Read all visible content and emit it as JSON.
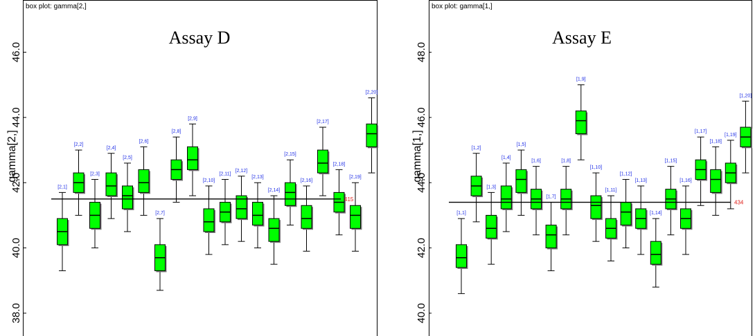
{
  "chart_data": [
    {
      "type": "box",
      "tag": "box plot: gamma[2,]",
      "title": "Assay D",
      "ylabel": "gamma[2,]",
      "ylim": [
        37.3,
        47.6
      ],
      "yticks": [
        "38.0",
        "40.0",
        "42.0",
        "44.0",
        "46.0"
      ],
      "ytick_values": [
        38,
        40,
        42,
        44,
        46
      ],
      "reference_line": {
        "value": 41.5,
        "label": "415"
      },
      "box_color": "#00ff00",
      "boxes": [
        {
          "label": "[2,1]",
          "whisker_low": 39.3,
          "q1": 40.1,
          "median": 40.5,
          "q3": 40.9,
          "whisker_high": 41.7
        },
        {
          "label": "[2,2]",
          "whisker_low": 41.0,
          "q1": 41.7,
          "median": 42.0,
          "q3": 42.3,
          "whisker_high": 43.0
        },
        {
          "label": "[2,3]",
          "whisker_low": 40.0,
          "q1": 40.6,
          "median": 41.0,
          "q3": 41.4,
          "whisker_high": 42.1
        },
        {
          "label": "[2,4]",
          "whisker_low": 40.9,
          "q1": 41.6,
          "median": 41.9,
          "q3": 42.3,
          "whisker_high": 42.9
        },
        {
          "label": "[2,5]",
          "whisker_low": 40.5,
          "q1": 41.2,
          "median": 41.6,
          "q3": 41.9,
          "whisker_high": 42.6
        },
        {
          "label": "[2,6]",
          "whisker_low": 41.0,
          "q1": 41.7,
          "median": 42.0,
          "q3": 42.4,
          "whisker_high": 43.1
        },
        {
          "label": "[2,7]",
          "whisker_low": 38.7,
          "q1": 39.3,
          "median": 39.7,
          "q3": 40.1,
          "whisker_high": 40.9
        },
        {
          "label": "[2,8]",
          "whisker_low": 41.4,
          "q1": 42.1,
          "median": 42.4,
          "q3": 42.7,
          "whisker_high": 43.4
        },
        {
          "label": "[2,9]",
          "whisker_low": 41.6,
          "q1": 42.4,
          "median": 42.7,
          "q3": 43.1,
          "whisker_high": 43.8
        },
        {
          "label": "[2,10]",
          "whisker_low": 39.8,
          "q1": 40.5,
          "median": 40.8,
          "q3": 41.2,
          "whisker_high": 41.9
        },
        {
          "label": "[2,11]",
          "whisker_low": 40.1,
          "q1": 40.8,
          "median": 41.1,
          "q3": 41.4,
          "whisker_high": 42.1
        },
        {
          "label": "[2,12]",
          "whisker_low": 40.2,
          "q1": 40.9,
          "median": 41.2,
          "q3": 41.6,
          "whisker_high": 42.2
        },
        {
          "label": "[2,13]",
          "whisker_low": 40.0,
          "q1": 40.7,
          "median": 41.0,
          "q3": 41.4,
          "whisker_high": 42.0
        },
        {
          "label": "[2,14]",
          "whisker_low": 39.5,
          "q1": 40.2,
          "median": 40.6,
          "q3": 40.9,
          "whisker_high": 41.6
        },
        {
          "label": "[2,15]",
          "whisker_low": 40.7,
          "q1": 41.3,
          "median": 41.7,
          "q3": 42.0,
          "whisker_high": 42.7
        },
        {
          "label": "[2,16]",
          "whisker_low": 39.9,
          "q1": 40.6,
          "median": 40.9,
          "q3": 41.3,
          "whisker_high": 41.9
        },
        {
          "label": "[2,17]",
          "whisker_low": 41.6,
          "q1": 42.3,
          "median": 42.6,
          "q3": 43.0,
          "whisker_high": 43.7
        },
        {
          "label": "[2,18]",
          "whisker_low": 40.4,
          "q1": 41.1,
          "median": 41.4,
          "q3": 41.7,
          "whisker_high": 42.4
        },
        {
          "label": "[2,19]",
          "whisker_low": 39.9,
          "q1": 40.6,
          "median": 41.0,
          "q3": 41.3,
          "whisker_high": 42.0
        },
        {
          "label": "[2,20]",
          "whisker_low": 42.3,
          "q1": 43.1,
          "median": 43.5,
          "q3": 43.8,
          "whisker_high": 44.6
        }
      ]
    },
    {
      "type": "box",
      "tag": "box plot: gamma[1,]",
      "title": "Assay E",
      "ylabel": "gamma[1,]",
      "ylim": [
        39.3,
        49.6
      ],
      "yticks": [
        "40.0",
        "42.0",
        "44.0",
        "46.0",
        "48.0"
      ],
      "ytick_values": [
        40,
        42,
        44,
        46,
        48
      ],
      "reference_line": {
        "value": 43.4,
        "label": "434"
      },
      "box_color": "#00ff00",
      "boxes": [
        {
          "label": "[1,1]",
          "whisker_low": 40.6,
          "q1": 41.4,
          "median": 41.7,
          "q3": 42.1,
          "whisker_high": 42.9
        },
        {
          "label": "[1,2]",
          "whisker_low": 42.8,
          "q1": 43.6,
          "median": 43.9,
          "q3": 44.2,
          "whisker_high": 44.9
        },
        {
          "label": "[1,3]",
          "whisker_low": 41.5,
          "q1": 42.3,
          "median": 42.6,
          "q3": 43.0,
          "whisker_high": 43.7
        },
        {
          "label": "[1,4]",
          "whisker_low": 42.5,
          "q1": 43.2,
          "median": 43.5,
          "q3": 43.9,
          "whisker_high": 44.6
        },
        {
          "label": "[1,5]",
          "whisker_low": 43.0,
          "q1": 43.7,
          "median": 44.1,
          "q3": 44.4,
          "whisker_high": 45.0
        },
        {
          "label": "[1,6]",
          "whisker_low": 42.4,
          "q1": 43.2,
          "median": 43.5,
          "q3": 43.8,
          "whisker_high": 44.5
        },
        {
          "label": "[1,7]",
          "whisker_low": 41.3,
          "q1": 42.0,
          "median": 42.4,
          "q3": 42.7,
          "whisker_high": 43.4
        },
        {
          "label": "[1,8]",
          "whisker_low": 42.4,
          "q1": 43.2,
          "median": 43.5,
          "q3": 43.8,
          "whisker_high": 44.5
        },
        {
          "label": "[1,9]",
          "whisker_low": 44.7,
          "q1": 45.5,
          "median": 45.9,
          "q3": 46.2,
          "whisker_high": 47.0
        },
        {
          "label": "[1,10]",
          "whisker_low": 42.2,
          "q1": 42.9,
          "median": 43.3,
          "q3": 43.6,
          "whisker_high": 44.3
        },
        {
          "label": "[1,11]",
          "whisker_low": 41.6,
          "q1": 42.3,
          "median": 42.6,
          "q3": 42.9,
          "whisker_high": 43.6
        },
        {
          "label": "[1,12]",
          "whisker_low": 42.0,
          "q1": 42.7,
          "median": 43.1,
          "q3": 43.4,
          "whisker_high": 44.1
        },
        {
          "label": "[1,13]",
          "whisker_low": 41.8,
          "q1": 42.6,
          "median": 42.9,
          "q3": 43.2,
          "whisker_high": 43.9
        },
        {
          "label": "[1,14]",
          "whisker_low": 40.8,
          "q1": 41.5,
          "median": 41.8,
          "q3": 42.2,
          "whisker_high": 42.9
        },
        {
          "label": "[1,15]",
          "whisker_low": 42.4,
          "q1": 43.2,
          "median": 43.5,
          "q3": 43.8,
          "whisker_high": 44.5
        },
        {
          "label": "[1,16]",
          "whisker_low": 41.8,
          "q1": 42.6,
          "median": 42.9,
          "q3": 43.2,
          "whisker_high": 43.9
        },
        {
          "label": "[1,17]",
          "whisker_low": 43.3,
          "q1": 44.1,
          "median": 44.4,
          "q3": 44.7,
          "whisker_high": 45.4
        },
        {
          "label": "[1,18]",
          "whisker_low": 43.0,
          "q1": 43.7,
          "median": 44.1,
          "q3": 44.4,
          "whisker_high": 45.1
        },
        {
          "label": "[1,19]",
          "whisker_low": 43.2,
          "q1": 44.0,
          "median": 44.3,
          "q3": 44.6,
          "whisker_high": 45.3
        },
        {
          "label": "[1,20]",
          "whisker_low": 44.3,
          "q1": 45.1,
          "median": 45.4,
          "q3": 45.7,
          "whisker_high": 46.5
        }
      ]
    }
  ]
}
